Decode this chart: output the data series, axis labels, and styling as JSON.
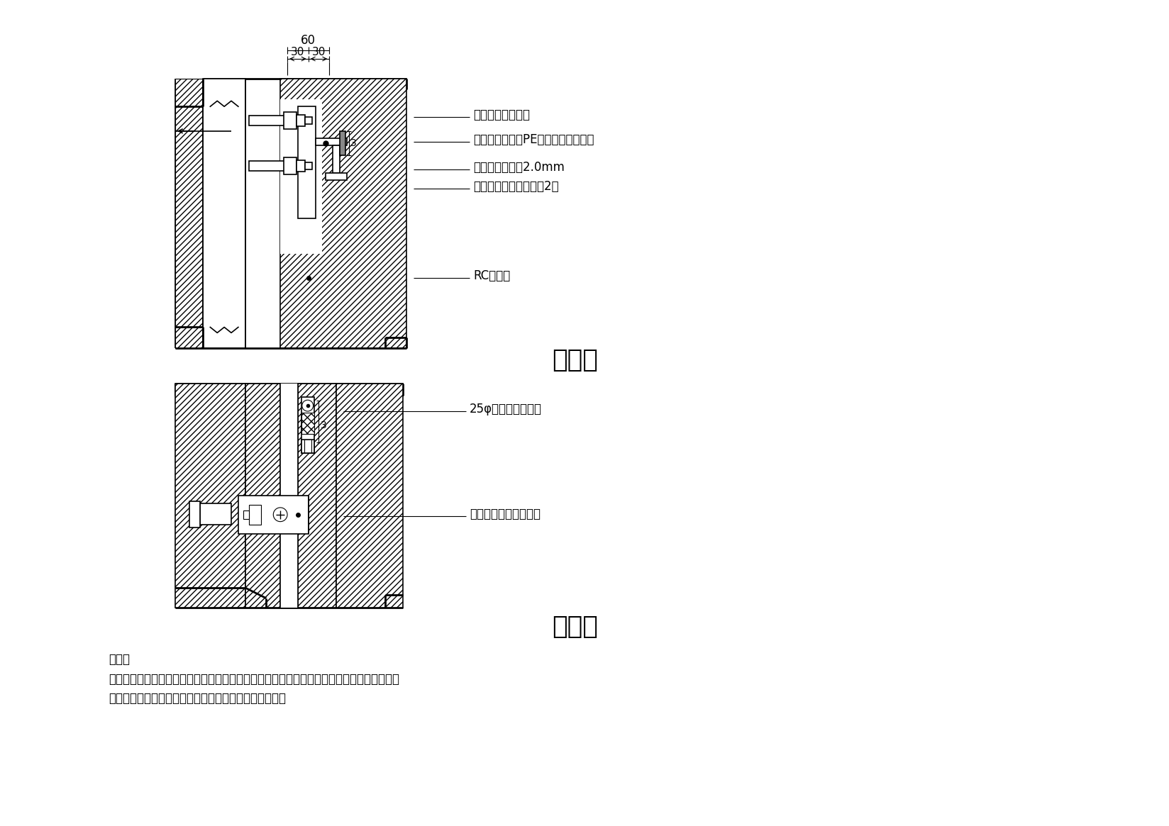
{
  "bg_color": "#ffffff",
  "line_color": "#000000",
  "title1": "立剖面",
  "title2": "半剖面",
  "ann_top": [
    "镀锌钓质螺丝锁固",
    "填缝剂嵌缝发泡PE棒衬底（聚硫胶）",
    "不锈钓固定片厚2.0mm",
    "膨胀螺栓固定每片石杗2尺",
    "RC或红砖"
  ],
  "ann_bot": [
    "25φ不锈钓水平扎件",
    "不锈钓固定片详立剖面"
  ],
  "note_title": "说明：",
  "note_lines": [
    "承商於石材施作前，应依石材分割尺寸配置镀锌钓架（防护处理），并提送结构分析，经甲方",
    "审查後方得施作，其费用已含於标单项目，不另行计价。"
  ],
  "dim60": "60",
  "dim30l": "30",
  "dim30r": "30"
}
